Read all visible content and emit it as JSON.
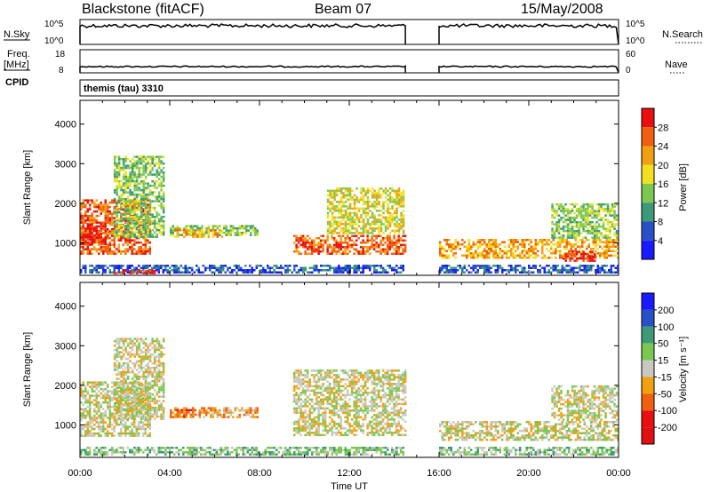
{
  "header": {
    "station": "Blackstone (fitACF)",
    "beam": "Beam 07",
    "date": "15/May/2008",
    "cpid_label": "CPID",
    "cpid_value": "themis (tau) 3310"
  },
  "param_panels": {
    "nsky_label": "N.Sky",
    "nsearch_label": "N.Search",
    "freq_label_1": "Freq.",
    "freq_label_2": "[MHz]",
    "nave_label": "Nave",
    "left_ticks_top": [
      "10^5",
      "10^0"
    ],
    "right_ticks_top": [
      "10^5",
      "10^0"
    ],
    "left_ticks_freq": [
      "18",
      "8"
    ],
    "right_ticks_nave": [
      "60",
      "0"
    ]
  },
  "chart_data": [
    {
      "type": "heatmap",
      "quantity": "Power",
      "ylabel": "Slant Range [km]",
      "colorbar_label": "Power [dB]",
      "ylim": [
        180,
        4600
      ],
      "xlim": [
        0,
        24
      ],
      "yticks": [
        1000,
        2000,
        3000,
        4000
      ],
      "colorbar_ticks": [
        "28",
        "24",
        "20",
        "16",
        "12",
        "8",
        "4"
      ],
      "colors": [
        "#1a1aff",
        "#2a50c8",
        "#3c9a78",
        "#7ac850",
        "#f0e020",
        "#f0a010",
        "#f06010",
        "#e81010"
      ],
      "data_gap_hours": [
        14.5,
        16.0
      ],
      "regions": [
        {
          "t0": 0.0,
          "t1": 3.2,
          "r0": 700,
          "r1": 2100,
          "level": 6
        },
        {
          "t0": 0.0,
          "t1": 1.2,
          "r0": 950,
          "r1": 1500,
          "level": 7
        },
        {
          "t0": 1.5,
          "t1": 3.8,
          "r0": 1100,
          "r1": 3200,
          "level": 3
        },
        {
          "t0": 4.0,
          "t1": 8.0,
          "r0": 1150,
          "r1": 1450,
          "level": 3
        },
        {
          "t0": 4.2,
          "t1": 6.5,
          "r0": 1150,
          "r1": 1350,
          "level": 5
        },
        {
          "t0": 9.5,
          "t1": 14.5,
          "r0": 700,
          "r1": 1200,
          "level": 6
        },
        {
          "t0": 11.0,
          "t1": 14.5,
          "r0": 1200,
          "r1": 2400,
          "level": 4
        },
        {
          "t0": 16.0,
          "t1": 24.0,
          "r0": 600,
          "r1": 1100,
          "level": 5
        },
        {
          "t0": 21.0,
          "t1": 24.0,
          "r0": 1100,
          "r1": 2000,
          "level": 3
        },
        {
          "t0": 21.5,
          "t1": 23.0,
          "r0": 500,
          "r1": 800,
          "level": 7
        },
        {
          "t0": 0.0,
          "t1": 14.5,
          "r0": 200,
          "r1": 450,
          "level": 1
        },
        {
          "t0": 16.0,
          "t1": 24.0,
          "r0": 200,
          "r1": 450,
          "level": 1
        },
        {
          "t0": 1.5,
          "t1": 3.5,
          "r0": 200,
          "r1": 320,
          "level": 7
        }
      ]
    },
    {
      "type": "heatmap",
      "quantity": "Velocity",
      "ylabel": "Slant Range [km]",
      "xlabel": "Time UT",
      "colorbar_label": "Velocity [m s⁻¹]",
      "ylim": [
        180,
        4600
      ],
      "xlim": [
        0,
        24
      ],
      "yticks": [
        1000,
        2000,
        3000,
        4000
      ],
      "xticks": [
        "00:00",
        "04:00",
        "08:00",
        "12:00",
        "16:00",
        "20:00",
        "00:00"
      ],
      "colorbar_ticks": [
        "200",
        "100",
        "50",
        "15",
        "-15",
        "-50",
        "-100",
        "-200"
      ],
      "colors": [
        "#1a1aff",
        "#2a50c8",
        "#3c9a78",
        "#7ac850",
        "#c8c8c0",
        "#f0a010",
        "#f06010",
        "#e81010",
        "#e01010"
      ],
      "data_gap_hours": [
        14.5,
        16.0
      ],
      "regions": [
        {
          "t0": 0.0,
          "t1": 3.2,
          "r0": 700,
          "r1": 2100,
          "level": 4
        },
        {
          "t0": 1.5,
          "t1": 3.8,
          "r0": 1100,
          "r1": 3200,
          "level": 4
        },
        {
          "t0": 4.0,
          "t1": 8.0,
          "r0": 1150,
          "r1": 1450,
          "level": 5
        },
        {
          "t0": 4.2,
          "t1": 5.2,
          "r0": 1200,
          "r1": 1400,
          "level": 6
        },
        {
          "t0": 9.5,
          "t1": 14.5,
          "r0": 700,
          "r1": 2400,
          "level": 4
        },
        {
          "t0": 16.0,
          "t1": 24.0,
          "r0": 600,
          "r1": 1100,
          "level": 4
        },
        {
          "t0": 21.0,
          "t1": 24.0,
          "r0": 1100,
          "r1": 2000,
          "level": 4
        },
        {
          "t0": 0.0,
          "t1": 14.5,
          "r0": 200,
          "r1": 450,
          "level": 3
        },
        {
          "t0": 16.0,
          "t1": 24.0,
          "r0": 200,
          "r1": 450,
          "level": 3
        }
      ]
    }
  ]
}
